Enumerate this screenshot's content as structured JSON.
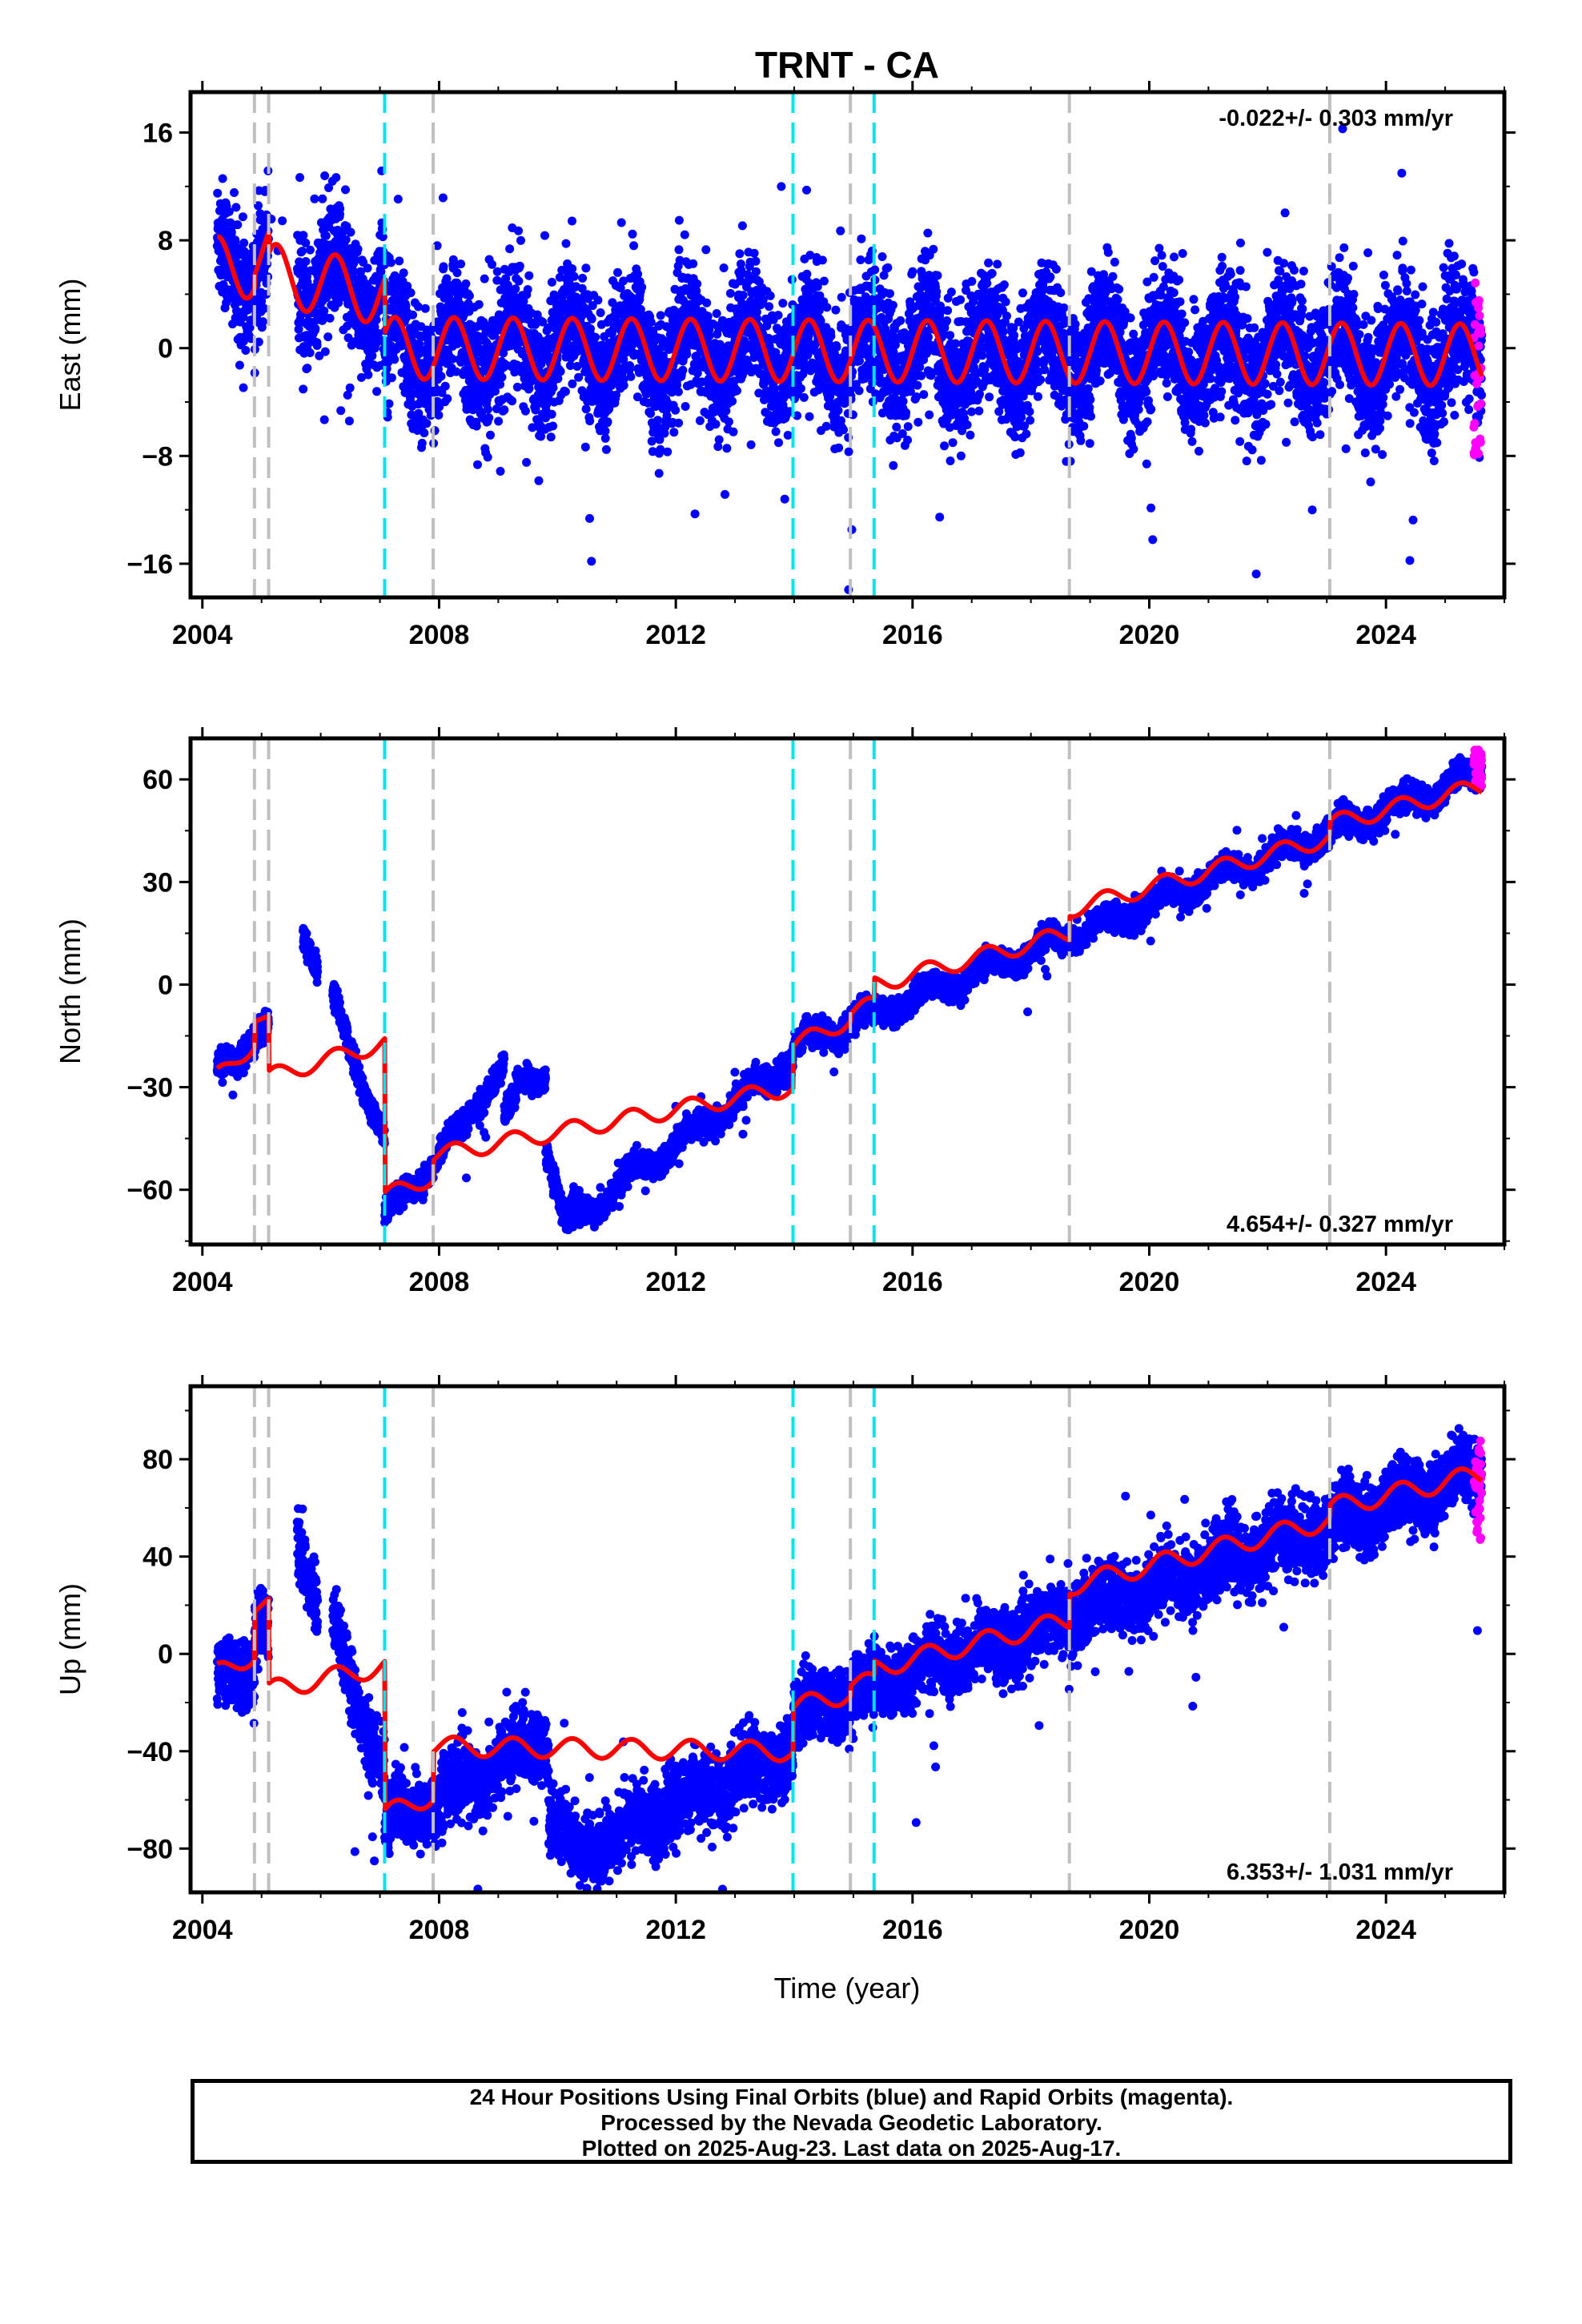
{
  "title": "TRNT - CA",
  "xlabel": "Time (year)",
  "x_ticks": [
    2004,
    2008,
    2012,
    2016,
    2020,
    2024
  ],
  "xlim": [
    2003.8,
    2026.0
  ],
  "colors": {
    "final_orbits": "#0000ff",
    "rapid_orbits": "#ff00ff",
    "model": "#ff0000",
    "equipment_change": "#c0c0c0",
    "earthquake": "#00e5ee"
  },
  "event_lines": {
    "gray": [
      2004.88,
      2005.12,
      2007.9,
      2014.95,
      2018.65,
      2023.05
    ],
    "cyan": [
      2007.08,
      2013.98,
      2015.35
    ]
  },
  "footer": {
    "line1": "24 Hour Positions Using Final Orbits (blue) and Rapid Orbits (magenta).",
    "line2": "Processed by the Nevada Geodetic Laboratory.",
    "line3": "Plotted on 2025-Aug-23. Last data on 2025-Aug-17."
  },
  "chart_data": [
    {
      "type": "scatter",
      "component": "east",
      "ylabel": "East (mm)",
      "ylim": [
        -18.5,
        19
      ],
      "y_ticks": [
        -16,
        -8,
        0,
        8,
        16
      ],
      "rate": "-0.022+/- 0.303 mm/yr",
      "rate_position": "top-right",
      "data_start": 2004.25,
      "data_end": 2025.62,
      "seasonal_amplitude": 2.3,
      "scatter_sd": 2.3,
      "model_segments": [
        {
          "start": 2004.25,
          "end": 2004.88,
          "y0": 6.0,
          "y1": 6.0
        },
        {
          "start": 2004.88,
          "end": 2005.12,
          "y0": 7.0,
          "y1": 7.0
        },
        {
          "start": 2005.12,
          "end": 2007.08,
          "y0": 5.5,
          "y1": 4.0
        },
        {
          "start": 2007.08,
          "end": 2025.62,
          "y0": 0.0,
          "y1": -0.5
        }
      ],
      "rapid_points": {
        "start": 2025.48,
        "end": 2025.62,
        "y_min": -8,
        "y_max": 5
      }
    },
    {
      "type": "scatter",
      "component": "north",
      "ylabel": "North (mm)",
      "ylim": [
        -76,
        72
      ],
      "y_ticks": [
        -60,
        -30,
        0,
        30,
        60
      ],
      "rate": "4.654+/- 0.327 mm/yr",
      "rate_position": "bottom-right",
      "data_start": 2004.25,
      "data_end": 2025.62,
      "seasonal_amplitude": 2.5,
      "scatter_sd": 1.8,
      "model_segments": [
        {
          "start": 2004.25,
          "end": 2004.88,
          "y0": -27,
          "y1": -17
        },
        {
          "start": 2004.88,
          "end": 2005.12,
          "y0": -9,
          "y1": -11
        },
        {
          "start": 2005.12,
          "end": 2007.08,
          "y0": -27,
          "y1": -17
        },
        {
          "start": 2007.08,
          "end": 2007.9,
          "y0": -62,
          "y1": -56
        },
        {
          "start": 2007.9,
          "end": 2013.98,
          "y0": -50,
          "y1": -30
        },
        {
          "start": 2013.98,
          "end": 2014.95,
          "y0": -18,
          "y1": -10
        },
        {
          "start": 2014.95,
          "end": 2015.35,
          "y0": -8,
          "y1": -6
        },
        {
          "start": 2015.35,
          "end": 2018.65,
          "y0": 0,
          "y1": 15
        },
        {
          "start": 2018.65,
          "end": 2023.05,
          "y0": 22,
          "y1": 43
        },
        {
          "start": 2023.05,
          "end": 2025.62,
          "y0": 47,
          "y1": 58
        }
      ],
      "observed_segments": [
        {
          "start": 2004.25,
          "end": 2004.88,
          "y0": -27,
          "y1": -15
        },
        {
          "start": 2004.88,
          "end": 2005.12,
          "y0": -15,
          "y1": -12
        },
        {
          "start": 2005.7,
          "end": 2005.95,
          "y0": 17,
          "y1": 5
        },
        {
          "start": 2006.2,
          "end": 2007.08,
          "y0": -5,
          "y1": -45
        },
        {
          "start": 2007.08,
          "end": 2008.5,
          "y0": -68,
          "y1": -40
        },
        {
          "start": 2008.5,
          "end": 2009.1,
          "y0": -37,
          "y1": -24
        },
        {
          "start": 2009.1,
          "end": 2009.3,
          "y0": -40,
          "y1": -35
        },
        {
          "start": 2009.3,
          "end": 2009.8,
          "y0": -30,
          "y1": -25
        },
        {
          "start": 2009.8,
          "end": 2010.15,
          "y0": -45,
          "y1": -72
        },
        {
          "start": 2010.15,
          "end": 2013.98,
          "y0": -70,
          "y1": -22
        },
        {
          "start": 2013.98,
          "end": 2025.62,
          "y0": -18,
          "y1": 62
        }
      ],
      "rapid_points": {
        "start": 2025.48,
        "end": 2025.62,
        "y_min": 58,
        "y_max": 69
      }
    },
    {
      "type": "scatter",
      "component": "up",
      "ylabel": "Up (mm)",
      "ylim": [
        -98,
        110
      ],
      "y_ticks": [
        -80,
        -40,
        0,
        40,
        80
      ],
      "rate": "6.353+/- 1.031 mm/yr",
      "rate_position": "bottom-right",
      "data_start": 2004.25,
      "data_end": 2025.62,
      "seasonal_amplitude": 4.0,
      "scatter_sd": 7.0,
      "model_segments": [
        {
          "start": 2004.25,
          "end": 2004.88,
          "y0": -8,
          "y1": 0
        },
        {
          "start": 2004.88,
          "end": 2005.12,
          "y0": 20,
          "y1": 20
        },
        {
          "start": 2005.12,
          "end": 2007.08,
          "y0": -15,
          "y1": -5
        },
        {
          "start": 2007.08,
          "end": 2007.9,
          "y0": -66,
          "y1": -58
        },
        {
          "start": 2007.9,
          "end": 2013.98,
          "y0": -38,
          "y1": -40
        },
        {
          "start": 2013.98,
          "end": 2014.95,
          "y0": -22,
          "y1": -16
        },
        {
          "start": 2014.95,
          "end": 2015.35,
          "y0": -12,
          "y1": -12
        },
        {
          "start": 2015.35,
          "end": 2018.65,
          "y0": -6,
          "y1": 14
        },
        {
          "start": 2018.65,
          "end": 2023.05,
          "y0": 28,
          "y1": 55
        },
        {
          "start": 2023.05,
          "end": 2025.62,
          "y0": 60,
          "y1": 74
        }
      ],
      "observed_segments": [
        {
          "start": 2004.25,
          "end": 2004.88,
          "y0": -10,
          "y1": -5
        },
        {
          "start": 2004.88,
          "end": 2005.12,
          "y0": 15,
          "y1": 10
        },
        {
          "start": 2005.6,
          "end": 2005.95,
          "y0": 50,
          "y1": 20
        },
        {
          "start": 2006.2,
          "end": 2007.08,
          "y0": 10,
          "y1": -50
        },
        {
          "start": 2007.08,
          "end": 2009.85,
          "y0": -70,
          "y1": -35
        },
        {
          "start": 2009.85,
          "end": 2010.3,
          "y0": -65,
          "y1": -82
        },
        {
          "start": 2010.3,
          "end": 2013.98,
          "y0": -82,
          "y1": -40
        },
        {
          "start": 2013.98,
          "end": 2025.62,
          "y0": -25,
          "y1": 75
        }
      ],
      "rapid_points": {
        "start": 2025.48,
        "end": 2025.62,
        "y_min": 43,
        "y_max": 88
      }
    }
  ]
}
